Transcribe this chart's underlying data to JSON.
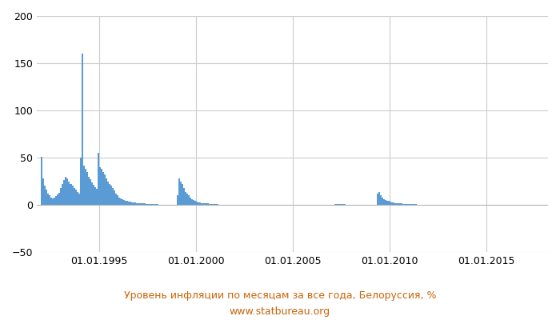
{
  "title": "Уровень инфляции по месяцам за все года, Белоруссия, %",
  "subtitle": "www.statbureau.org",
  "title_color": "#c8640a",
  "bar_color": "#5b9bd5",
  "background_color": "#ffffff",
  "grid_color": "#cccccc",
  "ylim": [
    -50,
    200
  ],
  "yticks": [
    -50,
    0,
    50,
    100,
    150,
    200
  ],
  "start_year": 1992,
  "values": [
    51.0,
    28.0,
    20.0,
    16.0,
    12.0,
    10.0,
    8.0,
    7.0,
    7.5,
    9.0,
    11.0,
    13.0,
    18.0,
    22.0,
    26.0,
    30.0,
    28.0,
    25.0,
    22.0,
    20.0,
    18.0,
    16.0,
    14.0,
    12.0,
    50.0,
    160.0,
    42.0,
    38.0,
    35.0,
    30.0,
    27.0,
    24.0,
    21.0,
    19.0,
    17.0,
    55.0,
    40.0,
    38.0,
    35.0,
    32.0,
    28.0,
    25.0,
    22.0,
    20.0,
    18.0,
    15.0,
    12.0,
    10.0,
    8.0,
    7.0,
    6.0,
    5.0,
    4.5,
    4.0,
    3.5,
    3.2,
    3.0,
    2.8,
    2.5,
    2.2,
    2.0,
    1.8,
    1.6,
    1.5,
    1.4,
    1.3,
    1.2,
    1.1,
    1.0,
    0.9,
    0.8,
    0.7,
    0.6,
    0.5,
    0.5,
    0.4,
    0.4,
    0.3,
    0.3,
    0.3,
    0.3,
    0.2,
    0.2,
    0.2,
    10.0,
    28.0,
    25.0,
    22.0,
    18.0,
    14.0,
    12.0,
    10.0,
    8.0,
    6.0,
    5.0,
    4.0,
    3.5,
    3.0,
    2.5,
    2.2,
    2.0,
    1.8,
    1.6,
    1.4,
    1.2,
    1.0,
    0.9,
    0.8,
    0.7,
    0.6,
    0.5,
    0.5,
    0.4,
    0.4,
    0.3,
    0.3,
    0.3,
    0.2,
    0.2,
    0.2,
    0.2,
    0.2,
    0.2,
    0.2,
    0.2,
    0.2,
    0.2,
    0.2,
    0.2,
    0.2,
    0.2,
    0.2,
    0.3,
    0.3,
    0.4,
    0.4,
    0.5,
    0.5,
    0.5,
    0.5,
    0.4,
    0.4,
    0.3,
    0.3,
    0.3,
    0.3,
    0.4,
    0.5,
    0.5,
    0.5,
    0.5,
    0.4,
    0.4,
    0.3,
    0.3,
    0.3,
    0.4,
    0.4,
    0.5,
    0.5,
    0.5,
    0.5,
    0.5,
    0.5,
    0.5,
    0.4,
    0.4,
    0.4,
    0.4,
    0.5,
    0.5,
    0.5,
    0.5,
    0.5,
    0.5,
    0.5,
    0.4,
    0.4,
    0.4,
    0.4,
    0.5,
    0.5,
    0.6,
    0.6,
    0.6,
    0.6,
    0.6,
    0.6,
    0.6,
    0.5,
    0.5,
    0.5,
    0.5,
    0.5,
    0.5,
    0.5,
    0.5,
    0.5,
    0.5,
    0.5,
    0.5,
    0.5,
    0.4,
    0.4,
    0.4,
    0.4,
    0.5,
    0.5,
    12.0,
    14.0,
    10.0,
    8.0,
    6.0,
    5.0,
    4.5,
    4.0,
    3.5,
    3.0,
    2.5,
    2.2,
    2.0,
    1.8,
    1.6,
    1.4,
    1.2,
    1.0,
    0.9,
    0.8,
    0.8,
    0.7,
    0.7,
    0.6,
    0.6,
    0.5,
    0.5,
    0.5,
    0.5,
    0.4,
    0.4,
    0.4,
    0.4,
    0.4,
    0.5,
    0.5,
    0.5,
    0.5,
    0.5,
    0.5,
    0.5,
    0.4,
    0.4,
    0.4,
    0.4,
    0.4,
    0.4,
    0.4,
    0.4,
    0.3,
    0.3,
    0.3,
    0.3,
    0.3,
    0.3,
    0.3,
    0.3,
    0.3,
    0.3,
    0.3,
    0.3,
    0.3,
    0.3,
    0.3,
    0.3,
    0.3,
    0.3,
    0.2,
    0.2,
    0.2,
    0.2,
    0.2,
    0.2,
    0.2,
    0.2,
    0.2,
    0.2,
    0.2,
    0.2,
    0.2,
    0.2,
    0.2,
    0.2,
    0.2,
    0.2,
    0.2,
    0.2,
    0.2,
    0.2,
    0.2,
    0.2,
    0.2,
    0.2,
    0.2,
    0.2,
    0.2,
    0.2,
    0.2,
    0.2,
    0.2,
    0.2,
    0.2,
    0.2,
    0.2
  ],
  "xtick_years": [
    1995,
    2000,
    2005,
    2010,
    2015
  ],
  "xtick_labels": [
    "01.01.1995",
    "01.01.2000",
    "01.01.2005",
    "01.01.2010",
    "01.01.2015"
  ]
}
